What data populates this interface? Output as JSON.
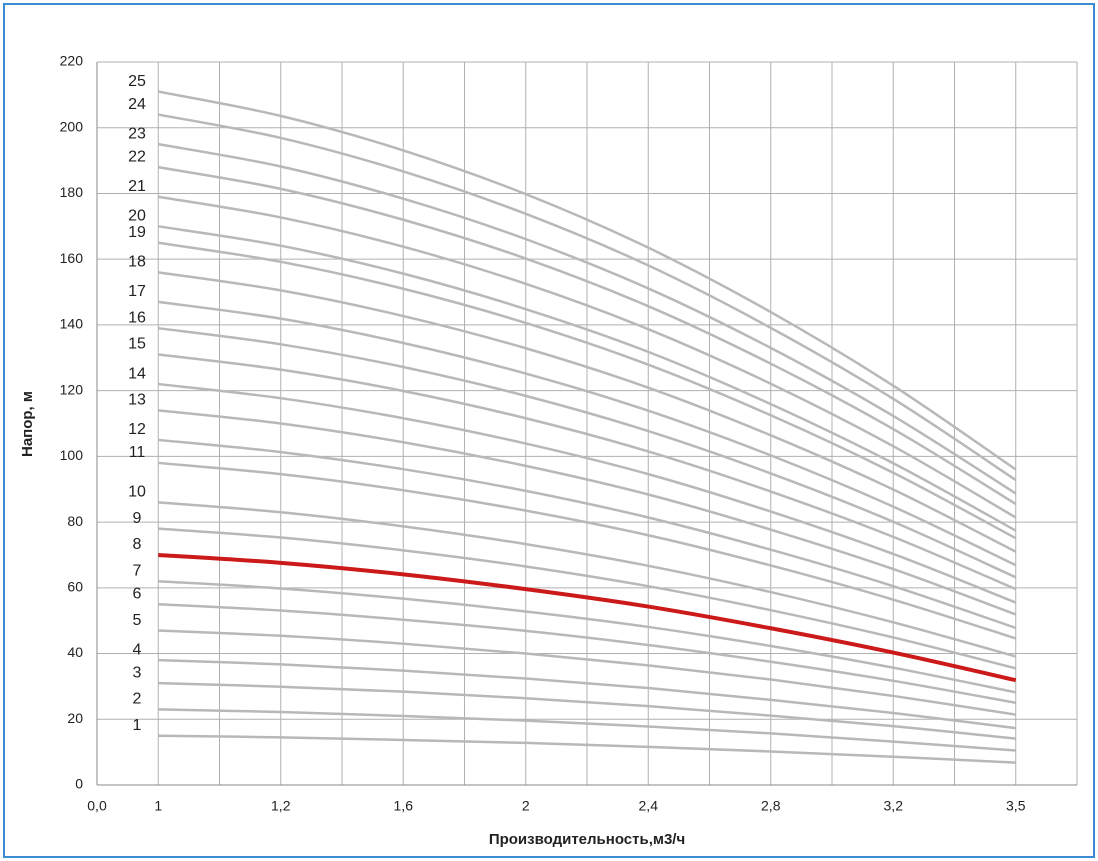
{
  "chart_data": {
    "type": "line",
    "x_label": "Производительность,м3/ч",
    "y_label": "Напор, м",
    "categories": [
      "0,0",
      "1",
      "1,2",
      "1,6",
      "2",
      "2,4",
      "2,8",
      "3,2",
      "3,5"
    ],
    "ylim": [
      0,
      220
    ],
    "yticks": [
      0,
      20,
      40,
      60,
      80,
      100,
      120,
      140,
      160,
      180,
      200,
      220
    ],
    "grid": true,
    "series": [
      {
        "name": "1",
        "color": "#b8b8b8",
        "values": [
          null,
          15,
          14.5,
          13.7,
          12.8,
          11.6,
          10.2,
          8.6,
          6.8
        ]
      },
      {
        "name": "2",
        "color": "#b8b8b8",
        "values": [
          null,
          23,
          22.2,
          21.0,
          19.6,
          17.8,
          15.7,
          13.2,
          10.5
        ]
      },
      {
        "name": "3",
        "color": "#b8b8b8",
        "values": [
          null,
          31,
          29.9,
          28.4,
          26.4,
          24.0,
          21.1,
          17.9,
          14.1
        ]
      },
      {
        "name": "4",
        "color": "#b8b8b8",
        "values": [
          null,
          38,
          36.7,
          34.8,
          32.4,
          29.5,
          25.9,
          21.9,
          17.3
        ]
      },
      {
        "name": "5",
        "color": "#b8b8b8",
        "values": [
          null,
          47,
          45.4,
          43.0,
          40.0,
          36.4,
          32.1,
          27.1,
          21.4
        ]
      },
      {
        "name": "6",
        "color": "#b8b8b8",
        "values": [
          null,
          55,
          53.1,
          50.3,
          46.9,
          42.6,
          37.5,
          31.7,
          25.0
        ]
      },
      {
        "name": "7",
        "color": "#b8b8b8",
        "values": [
          null,
          62,
          59.8,
          56.7,
          52.8,
          48.1,
          42.3,
          35.7,
          28.2
        ]
      },
      {
        "name": "8",
        "color": "#cc1a1a",
        "values": [
          null,
          70,
          67.6,
          64.1,
          59.6,
          54.3,
          47.7,
          40.3,
          31.9
        ]
      },
      {
        "name": "9",
        "color": "#b8b8b8",
        "values": [
          null,
          78,
          75.3,
          71.4,
          66.5,
          60.5,
          53.2,
          44.9,
          35.5
        ]
      },
      {
        "name": "10",
        "color": "#b8b8b8",
        "values": [
          null,
          86,
          83.0,
          78.7,
          73.3,
          66.7,
          58.7,
          49.5,
          39.1
        ]
      },
      {
        "name": "11",
        "color": "#b8b8b8",
        "values": [
          null,
          98,
          94.6,
          89.7,
          83.5,
          76.0,
          66.8,
          56.4,
          44.6
        ]
      },
      {
        "name": "12",
        "color": "#b8b8b8",
        "values": [
          null,
          105,
          101.3,
          96.1,
          89.5,
          81.4,
          71.6,
          60.5,
          47.8
        ]
      },
      {
        "name": "13",
        "color": "#b8b8b8",
        "values": [
          null,
          114,
          110.0,
          104.3,
          97.1,
          88.4,
          77.7,
          65.7,
          51.9
        ]
      },
      {
        "name": "14",
        "color": "#b8b8b8",
        "values": [
          null,
          122,
          117.7,
          111.6,
          103.9,
          94.6,
          83.2,
          70.3,
          55.5
        ]
      },
      {
        "name": "15",
        "color": "#b8b8b8",
        "values": [
          null,
          131,
          126.4,
          119.9,
          111.6,
          101.5,
          89.3,
          75.5,
          59.6
        ]
      },
      {
        "name": "16",
        "color": "#b8b8b8",
        "values": [
          null,
          139,
          134.1,
          127.2,
          118.4,
          107.7,
          94.8,
          80.1,
          63.2
        ]
      },
      {
        "name": "17",
        "color": "#b8b8b8",
        "values": [
          null,
          147,
          141.9,
          134.5,
          125.2,
          113.9,
          100.3,
          84.7,
          66.9
        ]
      },
      {
        "name": "18",
        "color": "#b8b8b8",
        "values": [
          null,
          156,
          150.5,
          142.7,
          132.9,
          120.9,
          106.4,
          89.9,
          71.0
        ]
      },
      {
        "name": "19",
        "color": "#b8b8b8",
        "values": [
          null,
          165,
          159.2,
          151.0,
          140.6,
          127.9,
          112.5,
          95.0,
          75.1
        ]
      },
      {
        "name": "20",
        "color": "#b8b8b8",
        "values": [
          null,
          170,
          164.1,
          155.6,
          144.8,
          131.8,
          115.9,
          97.9,
          77.4
        ]
      },
      {
        "name": "21",
        "color": "#b8b8b8",
        "values": [
          null,
          179,
          172.7,
          163.8,
          152.5,
          138.7,
          122.1,
          103.1,
          81.4
        ]
      },
      {
        "name": "22",
        "color": "#b8b8b8",
        "values": [
          null,
          188,
          181.4,
          172.0,
          160.2,
          145.7,
          128.2,
          108.3,
          85.5
        ]
      },
      {
        "name": "23",
        "color": "#b8b8b8",
        "values": [
          null,
          195,
          188.2,
          178.4,
          166.1,
          151.1,
          133.0,
          112.3,
          88.7
        ]
      },
      {
        "name": "24",
        "color": "#b8b8b8",
        "values": [
          null,
          204,
          196.9,
          186.7,
          173.8,
          158.1,
          139.1,
          117.5,
          92.8
        ]
      },
      {
        "name": "25",
        "color": "#b8b8b8",
        "values": [
          null,
          211,
          203.6,
          193.1,
          179.8,
          163.5,
          143.9,
          121.5,
          96.0
        ]
      }
    ]
  }
}
